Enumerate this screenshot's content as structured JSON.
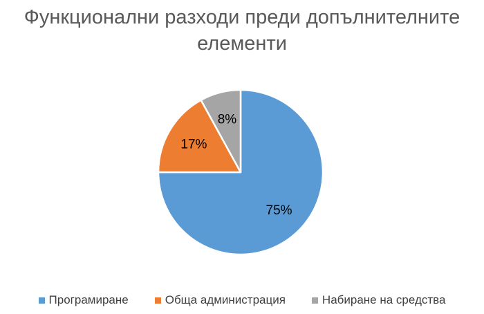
{
  "chart_data": {
    "type": "pie",
    "title_lines": [
      "Функционални разходи преди допълнителните",
      "елементи"
    ],
    "categories": [
      "Програмиране",
      "Обща администрация",
      "Набиране на средства"
    ],
    "values": [
      75,
      17,
      8
    ],
    "data_labels": [
      "75%",
      "17%",
      "8%"
    ],
    "colors": [
      "#5B9BD5",
      "#ED7D31",
      "#A5A5A5"
    ],
    "start_angle": "12 o'clock",
    "direction": "clockwise",
    "legend_position": "bottom"
  }
}
